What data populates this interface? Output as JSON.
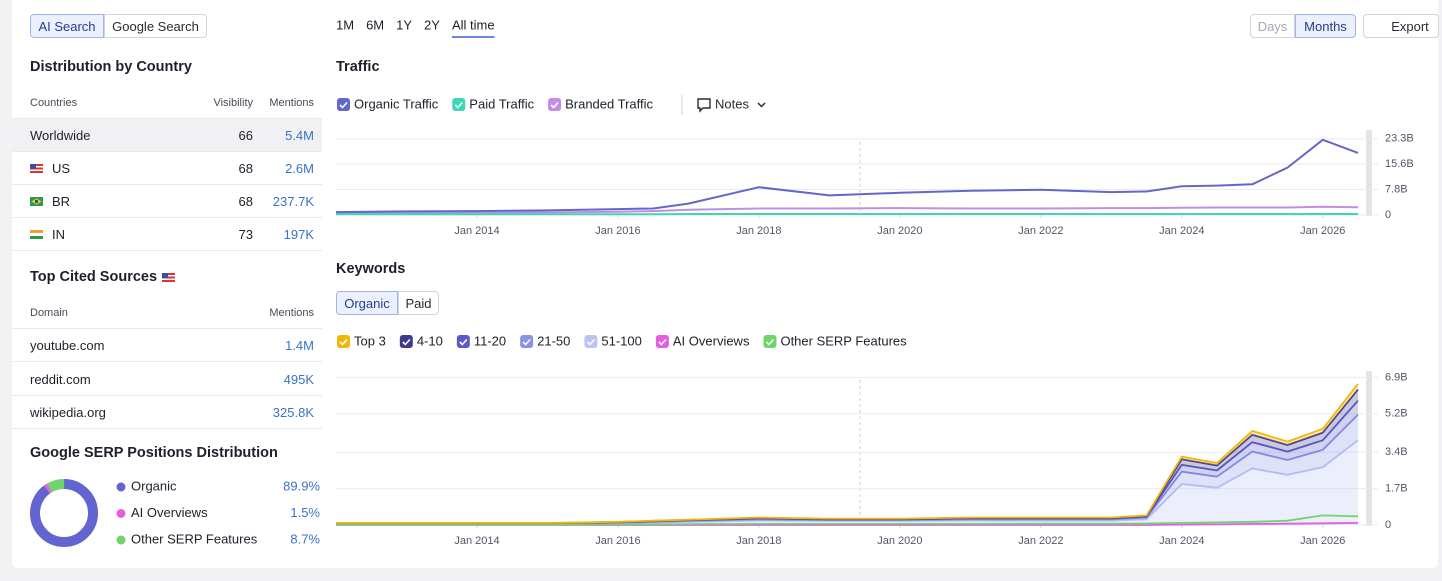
{
  "tabs": {
    "items": [
      "AI Search",
      "Google Search"
    ],
    "active": 0
  },
  "distribution": {
    "title": "Distribution by Country",
    "columns": [
      "Countries",
      "Visibility",
      "Mentions"
    ],
    "rows": [
      [
        "Worldwide",
        66,
        "5.4M"
      ],
      [
        "US",
        68,
        "2.6M"
      ],
      [
        "BR",
        68,
        "237.7K"
      ],
      [
        "IN",
        73,
        "197K"
      ]
    ]
  },
  "top_sources": {
    "title": "Top Cited Sources",
    "columns": [
      "Domain",
      "Mentions"
    ],
    "rows": [
      [
        "youtube.com",
        "1.4M"
      ],
      [
        "reddit.com",
        "495K"
      ],
      [
        "wikipedia.org",
        "325.8K"
      ]
    ]
  },
  "serp_distribution": {
    "title": "Google SERP Positions Distribution",
    "labels": [
      "Organic",
      "AI Overviews",
      "Other SERP Features"
    ],
    "values": [
      89.9,
      1.5,
      8.7
    ],
    "value_labels": [
      "89.9%",
      "1.5%",
      "8.7%"
    ],
    "colors": [
      "#6264cf",
      "#e45ee0",
      "#6fd46c"
    ]
  },
  "time_ranges": {
    "items": [
      "1M",
      "6M",
      "1Y",
      "2Y",
      "All time"
    ],
    "active": 4
  },
  "granularity": {
    "items": [
      "Days",
      "Months"
    ],
    "active": 1
  },
  "export": "Export",
  "notes": "Notes",
  "keyword_tabs": {
    "items": [
      "Organic",
      "Paid"
    ],
    "active": 0
  },
  "chart_data": [
    {
      "type": "line",
      "title": "Traffic",
      "x": [
        2012,
        2013,
        2014,
        2015,
        2016,
        2016.5,
        2017,
        2018,
        2019,
        2020,
        2021,
        2022,
        2023,
        2023.5,
        2024,
        2024.5,
        2025,
        2025.5,
        2026,
        2026.5
      ],
      "xlim": [
        2012,
        2026.67
      ],
      "xticks": [
        {
          "value": 2014,
          "label": "Jan 2014"
        },
        {
          "value": 2016,
          "label": "Jan 2016"
        },
        {
          "value": 2018,
          "label": "Jan 2018"
        },
        {
          "value": 2020,
          "label": "Jan 2020"
        },
        {
          "value": 2022,
          "label": "Jan 2022"
        },
        {
          "value": 2024,
          "label": "Jan 2024"
        },
        {
          "value": 2026,
          "label": "Jan 2026"
        }
      ],
      "ylim": [
        0,
        26
      ],
      "yticks": [
        0,
        {
          "value": 7.8,
          "label": "7.8B"
        },
        {
          "value": 15.6,
          "label": "15.6B"
        },
        {
          "value": 23.3,
          "label": "23.3B"
        }
      ],
      "grid": true,
      "series": [
        {
          "name": "Organic Traffic",
          "color": "#6466c9",
          "values": [
            0.9,
            1.1,
            1.2,
            1.4,
            1.8,
            2.0,
            3.5,
            8.5,
            6.0,
            6.8,
            7.4,
            7.7,
            7.0,
            7.2,
            8.8,
            9.0,
            9.4,
            14.5,
            23.0,
            19.0
          ]
        },
        {
          "name": "Paid Traffic",
          "color": "#3ed6b6",
          "values": [
            0.2,
            0.2,
            0.2,
            0.2,
            0.2,
            0.2,
            0.3,
            0.3,
            0.3,
            0.3,
            0.3,
            0.3,
            0.3,
            0.3,
            0.3,
            0.3,
            0.3,
            0.3,
            0.3,
            0.3
          ]
        },
        {
          "name": "Branded Traffic",
          "color": "#c38ce9",
          "values": [
            0.5,
            0.6,
            0.7,
            0.8,
            1.0,
            1.2,
            1.6,
            2.0,
            2.0,
            2.1,
            2.0,
            2.0,
            2.1,
            2.1,
            2.2,
            2.3,
            2.3,
            2.3,
            2.5,
            2.4
          ]
        }
      ]
    },
    {
      "type": "stacked_area",
      "title": "Keywords",
      "x": [
        2012,
        2013,
        2014,
        2015,
        2016,
        2016.5,
        2017,
        2018,
        2019,
        2020,
        2021,
        2022,
        2023,
        2023.5,
        2024,
        2024.5,
        2025,
        2025.5,
        2026,
        2026.5
      ],
      "xlim": [
        2012,
        2026.67
      ],
      "xticks": [
        {
          "value": 2014,
          "label": "Jan 2014"
        },
        {
          "value": 2016,
          "label": "Jan 2016"
        },
        {
          "value": 2018,
          "label": "Jan 2018"
        },
        {
          "value": 2020,
          "label": "Jan 2020"
        },
        {
          "value": 2022,
          "label": "Jan 2022"
        },
        {
          "value": 2024,
          "label": "Jan 2024"
        },
        {
          "value": 2026,
          "label": "Jan 2026"
        }
      ],
      "ylim": [
        0,
        7.2
      ],
      "yticks": [
        0,
        {
          "value": 1.7,
          "label": "1.7B"
        },
        {
          "value": 3.4,
          "label": "3.4B"
        },
        {
          "value": 5.2,
          "label": "5.2B"
        },
        {
          "value": 6.9,
          "label": "6.9B"
        }
      ],
      "grid": true,
      "series": [
        {
          "name": "Top 3",
          "color": "#f3b70a",
          "values": [
            0.01,
            0.01,
            0.01,
            0.01,
            0.01,
            0.01,
            0.01,
            0.02,
            0.02,
            0.02,
            0.02,
            0.02,
            0.02,
            0.02,
            0.13,
            0.12,
            0.18,
            0.16,
            0.18,
            0.26
          ]
        },
        {
          "name": "4-10",
          "color": "#3e3a8e",
          "values": [
            0.01,
            0.01,
            0.01,
            0.01,
            0.01,
            0.02,
            0.02,
            0.03,
            0.02,
            0.02,
            0.03,
            0.03,
            0.03,
            0.04,
            0.26,
            0.23,
            0.35,
            0.31,
            0.36,
            0.53
          ]
        },
        {
          "name": "11-20",
          "color": "#5a5bc8",
          "values": [
            0.01,
            0.01,
            0.01,
            0.01,
            0.02,
            0.02,
            0.03,
            0.04,
            0.03,
            0.03,
            0.04,
            0.04,
            0.04,
            0.05,
            0.32,
            0.29,
            0.44,
            0.39,
            0.45,
            0.66
          ]
        },
        {
          "name": "21-50",
          "color": "#8a92e4",
          "values": [
            0.02,
            0.02,
            0.02,
            0.02,
            0.03,
            0.04,
            0.05,
            0.06,
            0.05,
            0.05,
            0.06,
            0.06,
            0.06,
            0.08,
            0.58,
            0.52,
            0.79,
            0.7,
            0.81,
            1.19
          ]
        },
        {
          "name": "51-100",
          "color": "#bcc3f3",
          "values": [
            0.05,
            0.05,
            0.05,
            0.05,
            0.08,
            0.11,
            0.14,
            0.2,
            0.18,
            0.18,
            0.2,
            0.2,
            0.2,
            0.26,
            1.91,
            1.74,
            2.64,
            2.34,
            2.7,
            3.96
          ]
        },
        {
          "name": "AI Overviews",
          "color": "#e45ee0",
          "values": [
            0,
            0,
            0,
            0,
            0,
            0,
            0,
            0,
            0,
            0,
            0,
            0,
            0,
            0,
            0.02,
            0.03,
            0.05,
            0.06,
            0.08,
            0.1
          ]
        },
        {
          "name": "Other SERP Features",
          "color": "#6fd46c",
          "values": [
            0.02,
            0.02,
            0.02,
            0.02,
            0.03,
            0.03,
            0.04,
            0.05,
            0.05,
            0.05,
            0.05,
            0.06,
            0.06,
            0.07,
            0.1,
            0.12,
            0.15,
            0.2,
            0.45,
            0.4
          ]
        }
      ]
    }
  ]
}
